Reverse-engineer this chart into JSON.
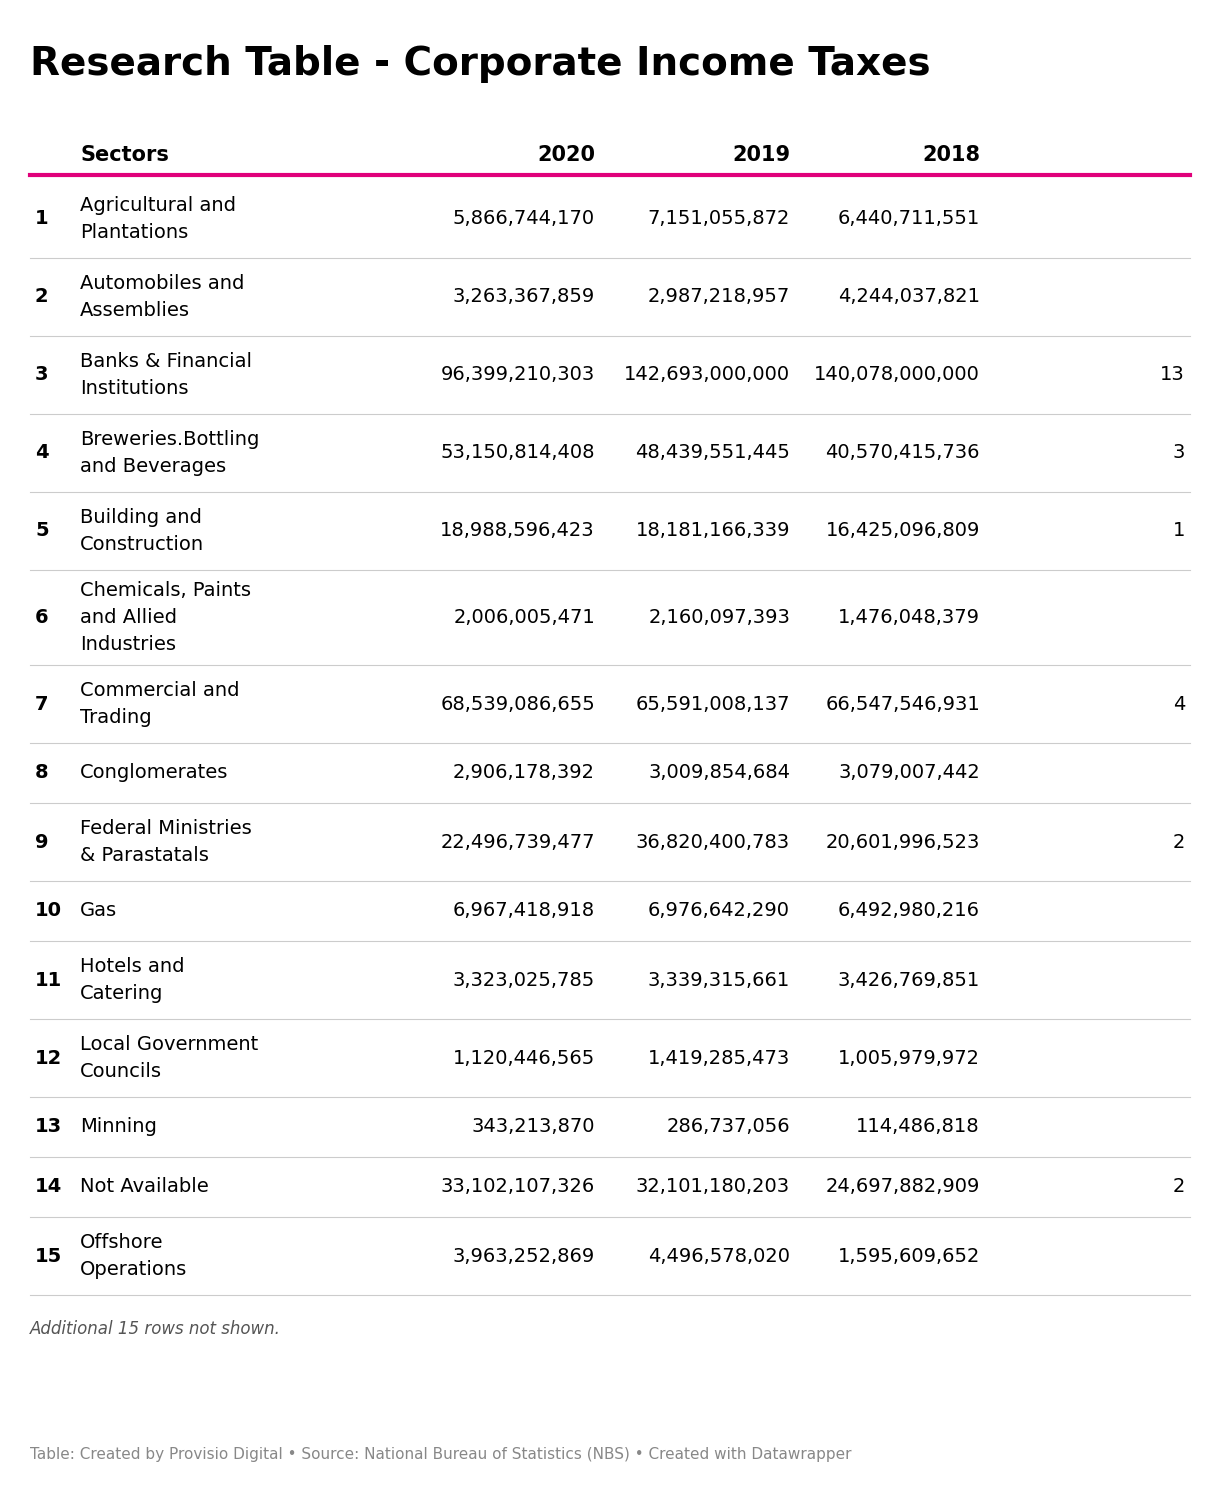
{
  "title": "Research Table - Corporate Income Taxes",
  "columns": [
    "",
    "Sectors",
    "2020",
    "2019",
    "2018"
  ],
  "rows": [
    [
      "1",
      "Agricultural and\nPlantations",
      "5,866,744,170",
      "7,151,055,872",
      "6,440,711,551",
      ""
    ],
    [
      "2",
      "Automobiles and\nAssemblies",
      "3,263,367,859",
      "2,987,218,957",
      "4,244,037,821",
      ""
    ],
    [
      "3",
      "Banks & Financial\nInstitutions",
      "96,399,210,303",
      "142,693,000,000",
      "140,078,000,000",
      "13"
    ],
    [
      "4",
      "Breweries.Bottling\nand Beverages",
      "53,150,814,408",
      "48,439,551,445",
      "40,570,415,736",
      "3"
    ],
    [
      "5",
      "Building and\nConstruction",
      "18,988,596,423",
      "18,181,166,339",
      "16,425,096,809",
      "1"
    ],
    [
      "6",
      "Chemicals, Paints\nand Allied\nIndustries",
      "2,006,005,471",
      "2,160,097,393",
      "1,476,048,379",
      ""
    ],
    [
      "7",
      "Commercial and\nTrading",
      "68,539,086,655",
      "65,591,008,137",
      "66,547,546,931",
      "4"
    ],
    [
      "8",
      "Conglomerates",
      "2,906,178,392",
      "3,009,854,684",
      "3,079,007,442",
      ""
    ],
    [
      "9",
      "Federal Ministries\n& Parastatals",
      "22,496,739,477",
      "36,820,400,783",
      "20,601,996,523",
      "2"
    ],
    [
      "10",
      "Gas",
      "6,967,418,918",
      "6,976,642,290",
      "6,492,980,216",
      ""
    ],
    [
      "11",
      "Hotels and\nCatering",
      "3,323,025,785",
      "3,339,315,661",
      "3,426,769,851",
      ""
    ],
    [
      "12",
      "Local Government\nCouncils",
      "1,120,446,565",
      "1,419,285,473",
      "1,005,979,972",
      ""
    ],
    [
      "13",
      "Minning",
      "343,213,870",
      "286,737,056",
      "114,486,818",
      ""
    ],
    [
      "14",
      "Not Available",
      "33,102,107,326",
      "32,101,180,203",
      "24,697,882,909",
      "2"
    ],
    [
      "15",
      "Offshore\nOperations",
      "3,963,252,869",
      "4,496,578,020",
      "1,595,609,652",
      ""
    ]
  ],
  "footer_note": "Additional 15 rows not shown.",
  "footer_credit": "Table: Created by Provisio Digital • Source: National Bureau of Statistics (NBS) • Created with Datawrapper",
  "header_line_color": "#e0007a",
  "row_line_color": "#cccccc",
  "background_color": "#ffffff",
  "title_fontsize": 28,
  "header_fontsize": 15,
  "cell_fontsize": 14,
  "num_fontsize": 14,
  "footer_note_fontsize": 12,
  "footer_credit_fontsize": 11
}
